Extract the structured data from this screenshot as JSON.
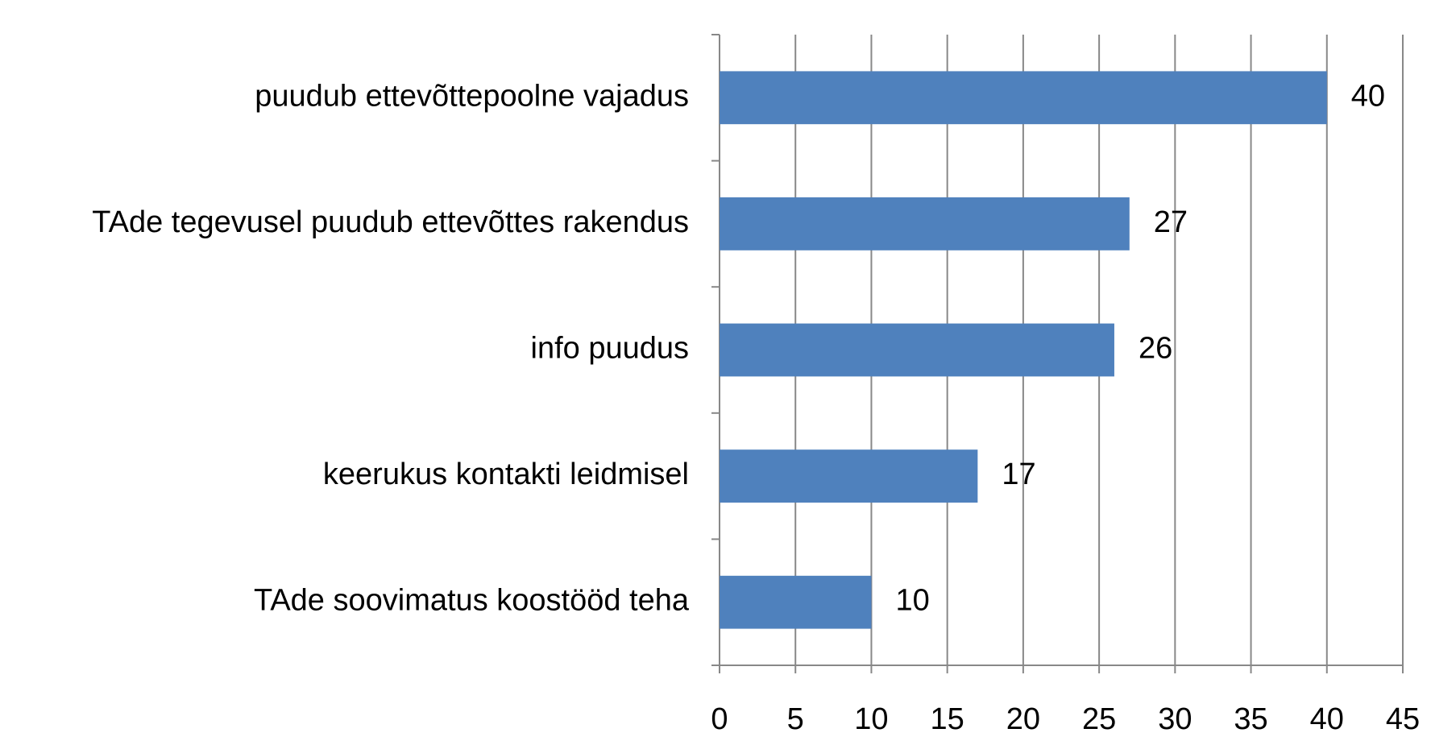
{
  "chart_data": {
    "type": "barh",
    "categories": [
      "puudub ettevõttepoolne vajadus",
      "TAde tegevusel puudub ettevõttes rakendus",
      "info puudus",
      "keerukus kontakti leidmisel",
      "TAde soovimatus koostööd teha"
    ],
    "values": [
      40,
      27,
      26,
      17,
      10
    ],
    "color": "#4f81bd",
    "xlim": [
      0,
      45
    ],
    "xticks": [
      0,
      5,
      10,
      15,
      20,
      25,
      30,
      35,
      40,
      45
    ],
    "grid": true
  }
}
